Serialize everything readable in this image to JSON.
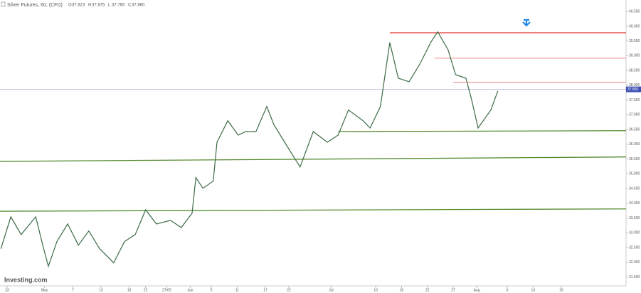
{
  "chart_data": {
    "type": "line",
    "title": "Silver Futures, 60, (CFD)",
    "ohlc": [
      [
        "O",
        "37.823"
      ],
      [
        "H",
        "37.875"
      ],
      [
        "L",
        "37.785"
      ],
      [
        "C",
        "37.860"
      ]
    ],
    "watermark": "Investing.com",
    "x": [
      -1.3,
      0.8,
      3.0,
      6.1,
      7.6,
      8.8,
      10.6,
      12.9,
      15.2,
      17.4,
      19.7,
      22.7,
      25.0,
      27.3,
      29.5,
      31.8,
      34.8,
      37.1,
      39.4,
      40.2,
      41.7,
      43.9,
      44.7,
      47.0,
      49.2,
      50.8,
      53.0,
      55.3,
      56.8,
      59.1,
      62.4,
      65.2,
      68.2,
      70.5,
      72.7,
      75.8,
      77.3,
      79.5,
      81.5,
      83.3,
      85.6,
      87.9,
      90.2,
      91.7,
      93.9,
      95.5,
      97.7,
      98.9,
      100.3,
      103.0,
      104.5
    ],
    "values": [
      32.46,
      33.54,
      32.94,
      33.54,
      32.58,
      31.86,
      32.7,
      33.3,
      32.58,
      33.06,
      32.46,
      31.98,
      32.7,
      32.94,
      33.78,
      33.3,
      33.42,
      33.18,
      33.66,
      34.87,
      34.51,
      34.75,
      36.07,
      36.8,
      36.31,
      36.43,
      36.43,
      37.28,
      36.67,
      36.07,
      35.23,
      36.43,
      36.07,
      36.31,
      37.16,
      36.8,
      36.55,
      37.28,
      39.45,
      38.24,
      38.12,
      38.72,
      39.45,
      39.81,
      39.2,
      38.36,
      38.24,
      37.52,
      36.55,
      37.16,
      37.81
    ],
    "color": "#3d6b45",
    "lines": [
      {
        "x": [
          81.5,
          131.8
        ],
        "values": [
          39.78,
          39.78
        ],
        "color": "#e53935"
      },
      {
        "x": [
          91.0,
          131.8
        ],
        "values": [
          38.92,
          38.92
        ],
        "color": "#ef9a9a"
      },
      {
        "x": [
          95.0,
          131.8
        ],
        "values": [
          38.1,
          38.1
        ],
        "color": "#ef9a9a"
      },
      {
        "x": [
          -1.5,
          131.8
        ],
        "values": [
          35.42,
          35.57
        ],
        "color": "#558b2f"
      },
      {
        "x": [
          -1.5,
          131.8
        ],
        "values": [
          33.73,
          33.81
        ],
        "color": "#558b2f"
      },
      {
        "x": [
          70.5,
          131.8
        ],
        "values": [
          36.43,
          36.46
        ],
        "color": "#558b2f"
      }
    ],
    "last_price": {
      "value": 37.86,
      "label": "37.860"
    },
    "last_color": "#3f51b5",
    "xlim": [
      -1.5,
      131.8
    ],
    "ylim": [
      31.2,
      40.89
    ],
    "xticks": [
      {
        "value": 0,
        "label": "23"
      },
      {
        "value": 8,
        "label": "May"
      },
      {
        "value": 14,
        "label": "7"
      },
      {
        "value": 20,
        "label": "13"
      },
      {
        "value": 26,
        "label": "19"
      },
      {
        "value": 29.5,
        "label": "22"
      },
      {
        "value": 34,
        "label": "27/05"
      },
      {
        "value": 39,
        "label": "Jun"
      },
      {
        "value": 43.5,
        "label": "5"
      },
      {
        "value": 49,
        "label": "11"
      },
      {
        "value": 55,
        "label": "17"
      },
      {
        "value": 60,
        "label": "22"
      },
      {
        "value": 69,
        "label": "Jul"
      },
      {
        "value": 78.5,
        "label": "10"
      },
      {
        "value": 84,
        "label": "16"
      },
      {
        "value": 89.5,
        "label": "22"
      },
      {
        "value": 95,
        "label": "27"
      },
      {
        "value": 100,
        "label": "Aug"
      },
      {
        "value": 106.5,
        "label": "6"
      },
      {
        "value": 112,
        "label": "13"
      },
      {
        "value": 118,
        "label": "19"
      }
    ],
    "yticks": [
      {
        "value": 31.5,
        "label": "31.500"
      },
      {
        "value": 32,
        "label": "32.000"
      },
      {
        "value": 32.5,
        "label": "32.500"
      },
      {
        "value": 33,
        "label": "33.000"
      },
      {
        "value": 33.5,
        "label": "33.500"
      },
      {
        "value": 34,
        "label": "34.000"
      },
      {
        "value": 34.5,
        "label": "34.500"
      },
      {
        "value": 35,
        "label": "35.000"
      },
      {
        "value": 35.5,
        "label": "35.500"
      },
      {
        "value": 36,
        "label": "36.000"
      },
      {
        "value": 36.5,
        "label": "36.500"
      },
      {
        "value": 37,
        "label": "37.000"
      },
      {
        "value": 37.5,
        "label": "37.500"
      },
      {
        "value": 38,
        "label": "38.000"
      },
      {
        "value": 38.5,
        "label": "38.500"
      },
      {
        "value": 39,
        "label": "39.000"
      },
      {
        "value": 39.5,
        "label": "39.500"
      },
      {
        "value": 40,
        "label": "40.000"
      },
      {
        "value": 40.5,
        "label": "40.500"
      }
    ]
  }
}
